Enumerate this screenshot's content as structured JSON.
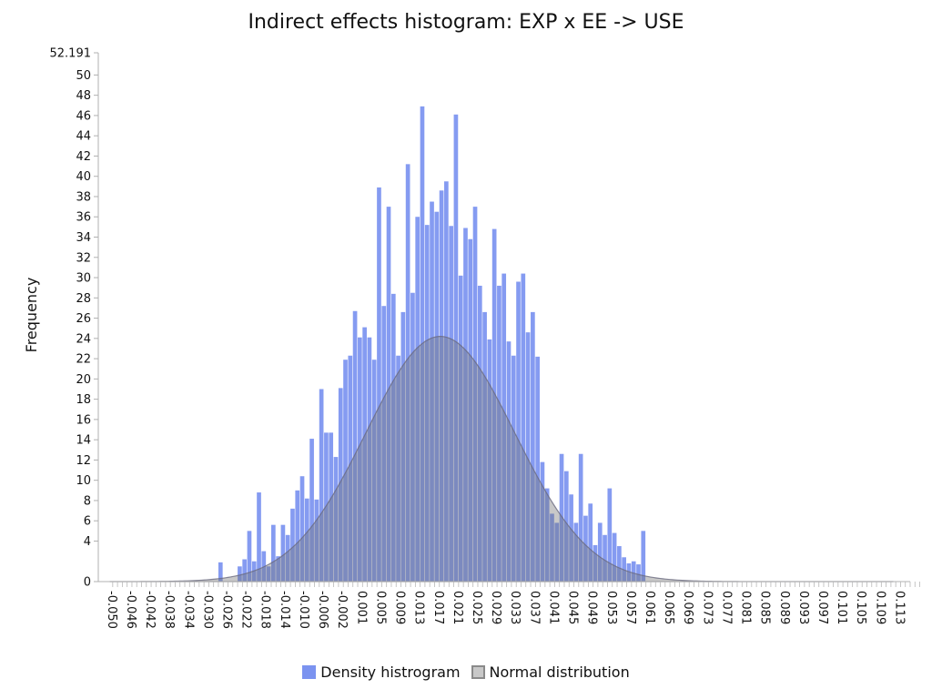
{
  "chart_data": {
    "type": "bar",
    "title": "Indirect effects histogram: EXP x EE -> USE",
    "xlabel": "",
    "ylabel": "Frequency",
    "ylim": [
      0,
      52.191
    ],
    "ymax_label": "52.191",
    "y_ticks": [
      0,
      4,
      6,
      8,
      10,
      12,
      14,
      16,
      18,
      20,
      22,
      24,
      26,
      28,
      30,
      32,
      34,
      36,
      38,
      40,
      42,
      44,
      46,
      48,
      50
    ],
    "x_tick_labels": [
      "-0.050",
      "-0.046",
      "-0.042",
      "-0.038",
      "-0.034",
      "-0.030",
      "-0.026",
      "-0.022",
      "-0.018",
      "-0.014",
      "-0.010",
      "-0.006",
      "-0.002",
      "0.001",
      "0.005",
      "0.009",
      "0.013",
      "0.017",
      "0.021",
      "0.025",
      "0.029",
      "0.033",
      "0.037",
      "0.041",
      "0.045",
      "0.049",
      "0.053",
      "0.057",
      "0.061",
      "0.065",
      "0.069",
      "0.073",
      "0.077",
      "0.081",
      "0.085",
      "0.089",
      "0.093",
      "0.097",
      "0.101",
      "0.105",
      "0.109",
      "0.113"
    ],
    "bin_width": 0.001,
    "bin_start": -0.0285,
    "series": [
      {
        "name": "Density histrogram",
        "color": "#7b93f0",
        "values": [
          1.9,
          0,
          0,
          0,
          1.5,
          2.2,
          5.0,
          2.0,
          8.8,
          3.0,
          1.5,
          5.6,
          2.5,
          5.6,
          4.6,
          7.2,
          9.0,
          10.4,
          8.2,
          14.1,
          8.1,
          19.0,
          14.7,
          14.7,
          12.3,
          19.1,
          21.9,
          22.3,
          26.7,
          24.1,
          25.1,
          24.1,
          21.9,
          38.9,
          27.2,
          37.0,
          28.4,
          22.3,
          26.6,
          41.2,
          28.5,
          36.0,
          46.9,
          35.2,
          37.5,
          36.5,
          38.6,
          39.5,
          35.1,
          46.1,
          30.2,
          34.9,
          33.8,
          37.0,
          29.2,
          26.6,
          23.9,
          34.8,
          29.2,
          30.4,
          23.7,
          22.3,
          29.6,
          30.4,
          24.6,
          26.6,
          22.2,
          11.8,
          9.2,
          6.7,
          5.8,
          12.6,
          10.9,
          8.6,
          5.8,
          12.6,
          6.5,
          7.7,
          3.6,
          5.8,
          4.6,
          9.2,
          4.8,
          3.5,
          2.4,
          1.8,
          2.0,
          1.7,
          5.0
        ]
      },
      {
        "name": "Normal distribution",
        "color": "#c8c8c8",
        "mean": 0.0177,
        "sd": 0.0155,
        "peak": 24.2
      }
    ],
    "legend_position": "bottom",
    "grid": false
  }
}
